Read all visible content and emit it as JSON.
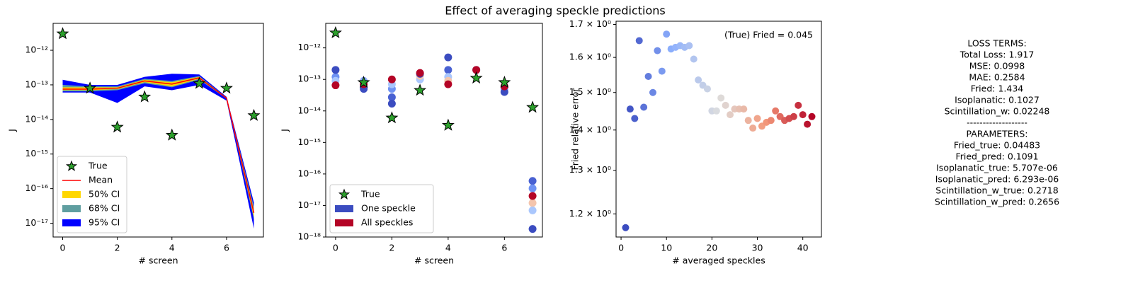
{
  "figure_title": "Effect of averaging speckle predictions",
  "chart_data": [
    {
      "type": "band",
      "xlabel": "# screen",
      "ylabel": "J",
      "log_y": true,
      "x": [
        0,
        1,
        2,
        3,
        4,
        5,
        6,
        7
      ],
      "xlim": [
        -0.35,
        7.35
      ],
      "ylim": [
        4e-18,
        6e-12
      ],
      "xticks": [
        0,
        2,
        4,
        6
      ],
      "yticks": [
        {
          "value": 1e-17,
          "label": "10⁻¹⁷"
        },
        {
          "value": 1e-16,
          "label": "10⁻¹⁶"
        },
        {
          "value": 1e-15,
          "label": "10⁻¹⁵"
        },
        {
          "value": 1e-14,
          "label": "10⁻¹⁴"
        },
        {
          "value": 1e-13,
          "label": "10⁻¹³"
        },
        {
          "value": 1e-12,
          "label": "10⁻¹²"
        }
      ],
      "bands": [
        {
          "name": "50% CI",
          "color": "#ffd700",
          "lower": [
            7e-14,
            7e-14,
            7.5e-14,
            1.2e-13,
            9e-14,
            1.5e-13,
            4.1e-14,
            1.5e-17
          ],
          "upper": [
            8.5e-14,
            8.5e-14,
            8.5e-14,
            1.4e-13,
            1.2e-13,
            1.7e-13,
            4.2e-14,
            2.5e-17
          ]
        },
        {
          "name": "68% CI",
          "color": "#5f9ea0",
          "lower": [
            6.5e-14,
            6.5e-14,
            7e-14,
            1.1e-13,
            8.5e-14,
            1.4e-13,
            4e-14,
            1.3e-17
          ],
          "upper": [
            1e-13,
            9e-14,
            9e-14,
            1.5e-13,
            1.3e-13,
            1.8e-13,
            4.3e-14,
            3e-17
          ]
        },
        {
          "name": "95% CI",
          "color": "#0000ff",
          "lower": [
            6e-14,
            6e-14,
            3e-14,
            9e-14,
            7e-14,
            1e-13,
            3.5e-14,
            7e-18
          ],
          "upper": [
            1.4e-13,
            1e-13,
            1e-13,
            1.7e-13,
            2.1e-13,
            2e-13,
            4.5e-14,
            4e-17
          ]
        }
      ],
      "series": [
        {
          "name": "True",
          "color": "#2ca02c",
          "marker": "star",
          "values": [
            3e-12,
            8e-14,
            6e-15,
            4.5e-14,
            3.5e-15,
            1.1e-13,
            8e-14,
            1.3e-14
          ]
        },
        {
          "name": "Mean",
          "color": "#ff0000",
          "marker": "line",
          "values": [
            7.5e-14,
            7.5e-14,
            8e-14,
            1.3e-13,
            1.05e-13,
            1.6e-13,
            4.15e-14,
            2e-17
          ]
        }
      ],
      "legend": "lower left"
    },
    {
      "type": "scatter",
      "xlabel": "# screen",
      "ylabel": "J",
      "log_y": true,
      "x": [
        0,
        1,
        2,
        3,
        4,
        5,
        6,
        7
      ],
      "xlim": [
        -0.35,
        7.35
      ],
      "ylim": [
        1e-18,
        6e-12
      ],
      "xticks": [
        0,
        2,
        4,
        6
      ],
      "yticks": [
        {
          "value": 1e-18,
          "label": "10⁻¹⁸"
        },
        {
          "value": 1e-17,
          "label": "10⁻¹⁷"
        },
        {
          "value": 1e-16,
          "label": "10⁻¹⁶"
        },
        {
          "value": 1e-15,
          "label": "10⁻¹⁵"
        },
        {
          "value": 1e-14,
          "label": "10⁻¹⁴"
        },
        {
          "value": 1e-13,
          "label": "10⁻¹³"
        },
        {
          "value": 1e-12,
          "label": "10⁻¹²"
        }
      ],
      "points": {
        "x": [
          0,
          0,
          1,
          1,
          2,
          2,
          2,
          3,
          3,
          4,
          4,
          4,
          6,
          7,
          7,
          7,
          7
        ],
        "values": [
          1.2e-13,
          9e-14,
          9e-14,
          6e-14,
          2.7e-14,
          5e-14,
          7e-14,
          1e-13,
          1.3e-13,
          2e-13,
          1.2e-13,
          9e-14,
          5e-14,
          6e-17,
          3.5e-17,
          1.2e-17,
          7e-18
        ],
        "colors": [
          "#6f92f3",
          "#aac7fd",
          "#8db0fe",
          "#6f92f3",
          "#4961d2",
          "#6f92f3",
          "#aac7fd",
          "#aac7fd",
          "#f4c5ad",
          "#4961d2",
          "#aac7fd",
          "#f4c5ad",
          "#8db0fe",
          "#4961d2",
          "#6f92f3",
          "#f4c5ad",
          "#aac7fd"
        ]
      },
      "series": [
        {
          "name": "True",
          "color": "#2ca02c",
          "marker": "star",
          "values": [
            3e-12,
            8e-14,
            6e-15,
            4.5e-14,
            3.5e-15,
            1.1e-13,
            8e-14,
            1.3e-14
          ]
        },
        {
          "name": "One speckle",
          "color": "#3b4cc0",
          "marker": "dot",
          "values": [
            2e-13,
            5e-14,
            1.7e-14,
            1.5e-13,
            5e-13,
            2e-13,
            4e-14,
            1.8e-18
          ]
        },
        {
          "name": "All speckles",
          "color": "#b40426",
          "marker": "dot",
          "values": [
            6.5e-14,
            7e-14,
            1e-13,
            1.6e-13,
            7e-14,
            2e-13,
            6e-14,
            2e-17
          ]
        }
      ],
      "legend": "lower left"
    },
    {
      "type": "scatter",
      "xlabel": "# averaged speckles",
      "ylabel": "Fried relative error",
      "log_y": true,
      "colormap": "coolwarm",
      "annotation": "(True) Fried = 0.045",
      "x": [
        1,
        2,
        3,
        4,
        5,
        6,
        7,
        8,
        9,
        10,
        11,
        12,
        13,
        14,
        15,
        16,
        17,
        18,
        19,
        20,
        21,
        22,
        23,
        24,
        25,
        26,
        27,
        28,
        29,
        30,
        31,
        32,
        33,
        34,
        35,
        36,
        37,
        38,
        39,
        40,
        41,
        42
      ],
      "values": [
        1.17,
        1.455,
        1.43,
        1.65,
        1.46,
        1.545,
        1.5,
        1.62,
        1.56,
        1.67,
        1.625,
        1.63,
        1.635,
        1.63,
        1.635,
        1.595,
        1.535,
        1.52,
        1.51,
        1.45,
        1.45,
        1.485,
        1.465,
        1.44,
        1.455,
        1.455,
        1.455,
        1.425,
        1.405,
        1.43,
        1.41,
        1.42,
        1.425,
        1.45,
        1.435,
        1.425,
        1.43,
        1.435,
        1.465,
        1.44,
        1.415,
        1.435
      ],
      "xlim": [
        -1.1,
        44.1
      ],
      "ylim": [
        1.15,
        1.71
      ],
      "xticks": [
        0,
        10,
        20,
        30,
        40
      ],
      "yticks": [
        {
          "value": 1.2,
          "label": "1.2 × 10⁰"
        },
        {
          "value": 1.3,
          "label": "1.3 × 10⁰"
        },
        {
          "value": 1.4,
          "label": "1.4 × 10⁰"
        },
        {
          "value": 1.5,
          "label": "1.5 × 10⁰"
        },
        {
          "value": 1.6,
          "label": "1.6 × 10⁰"
        },
        {
          "value": 1.7,
          "label": "1.7 × 10⁰"
        }
      ]
    }
  ],
  "text_panel": {
    "lines": [
      "LOSS TERMS:",
      "Total Loss: 1.917",
      "MSE: 0.0998",
      "MAE: 0.2584",
      "Fried: 1.434",
      "Isoplanatic: 0.1027",
      "Scintillation_w: 0.02248",
      "-------------------",
      "PARAMETERS:",
      "Fried_true: 0.04483",
      "Fried_pred: 0.1091",
      "Isoplanatic_true: 5.707e-06",
      "Isoplanatic_pred: 6.293e-06",
      "Scintillation_w_true: 0.2718",
      "Scintillation_w_pred: 0.2656"
    ]
  }
}
